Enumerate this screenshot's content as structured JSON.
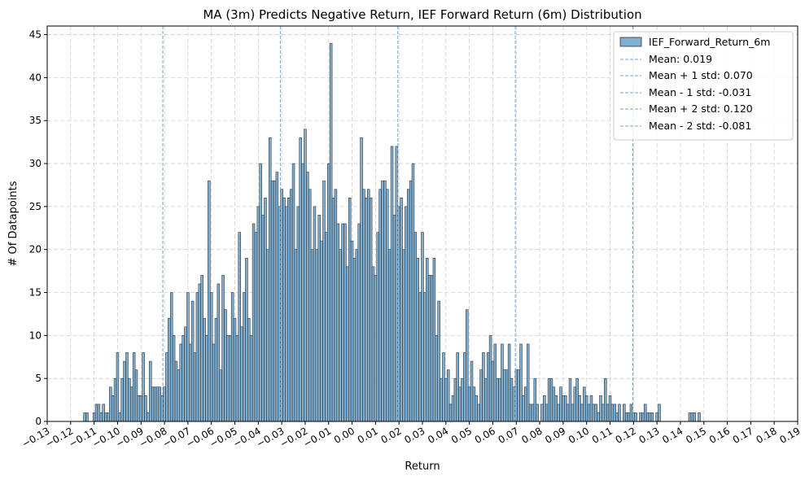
{
  "chart_data": {
    "type": "bar",
    "title": "MA (3m) Predicts Negative Return, IEF Forward Return (6m) Distribution",
    "xlabel": "Return",
    "ylabel": "# Of Datapoints",
    "xlim": [
      -0.13,
      0.19
    ],
    "ylim": [
      0,
      46
    ],
    "grid": true,
    "legend_position": "top-right",
    "x_ticks": [
      -0.13,
      -0.12,
      -0.11,
      -0.1,
      -0.09,
      -0.08,
      -0.07,
      -0.06,
      -0.05,
      -0.04,
      -0.03,
      -0.02,
      -0.01,
      0.0,
      0.01,
      0.02,
      0.03,
      0.04,
      0.05,
      0.06,
      0.07,
      0.08,
      0.09,
      0.1,
      0.11,
      0.12,
      0.13,
      0.14,
      0.15,
      0.16,
      0.17,
      0.18,
      0.19
    ],
    "x_tick_labels": [
      "−0.13",
      "−0.12",
      "−0.11",
      "−0.10",
      "−0.09",
      "−0.08",
      "−0.07",
      "−0.06",
      "−0.05",
      "−0.04",
      "−0.03",
      "−0.02",
      "−0.01",
      "0.00",
      "0.01",
      "0.02",
      "0.03",
      "0.04",
      "0.05",
      "0.06",
      "0.07",
      "0.08",
      "0.09",
      "0.10",
      "0.11",
      "0.12",
      "0.13",
      "0.14",
      "0.15",
      "0.16",
      "0.17",
      "0.18",
      "0.19"
    ],
    "y_ticks": [
      0,
      5,
      10,
      15,
      20,
      25,
      30,
      35,
      40,
      45
    ],
    "y_tick_labels": [
      "0",
      "5",
      "10",
      "15",
      "20",
      "25",
      "30",
      "35",
      "40",
      "45"
    ],
    "series": [
      {
        "name": "IEF_Forward_Return_6m",
        "bin_start": -0.1145,
        "bin_width": 0.001,
        "color": "#7fb0d3",
        "edge_color": "#333333",
        "counts": [
          1,
          1,
          0,
          0,
          1,
          2,
          2,
          1,
          2,
          1,
          1,
          4,
          3,
          5,
          8,
          1,
          5,
          7,
          8,
          5,
          4,
          8,
          6,
          3,
          3,
          8,
          3,
          1,
          7,
          4,
          4,
          4,
          4,
          3,
          4,
          8,
          12,
          15,
          10,
          7,
          6,
          9,
          10,
          11,
          15,
          9,
          14,
          8,
          15,
          16,
          17,
          12,
          10,
          28,
          15,
          9,
          12,
          16,
          6,
          17,
          13,
          10,
          10,
          15,
          12,
          10,
          22,
          11,
          15,
          19,
          12,
          10,
          23,
          22,
          25,
          30,
          24,
          26,
          20,
          33,
          28,
          28,
          29,
          25,
          27,
          26,
          25,
          26,
          27,
          30,
          20,
          25,
          33,
          30,
          34,
          29,
          27,
          20,
          25,
          20,
          24,
          21,
          28,
          22,
          30,
          44,
          26,
          27,
          23,
          20,
          23,
          23,
          18,
          26,
          21,
          19,
          20,
          23,
          33,
          27,
          26,
          27,
          26,
          18,
          17,
          22,
          27,
          28,
          28,
          27,
          20,
          32,
          24,
          32,
          25,
          26,
          20,
          25,
          27,
          28,
          30,
          22,
          19,
          15,
          22,
          15,
          19,
          17,
          17,
          19,
          10,
          14,
          5,
          8,
          5,
          6,
          2,
          3,
          5,
          8,
          4,
          5,
          8,
          13,
          4,
          7,
          4,
          3,
          2,
          6,
          8,
          5,
          8,
          10,
          7,
          9,
          5,
          5,
          9,
          6,
          6,
          9,
          5,
          4,
          6,
          6,
          9,
          3,
          4,
          9,
          2,
          2,
          5,
          2,
          0,
          2,
          3,
          2,
          5,
          5,
          4,
          3,
          2,
          4,
          3,
          3,
          2,
          5,
          2,
          4,
          5,
          3,
          2,
          4,
          3,
          2,
          3,
          2,
          2,
          1,
          3,
          2,
          5,
          2,
          3,
          2,
          2,
          1,
          2,
          0,
          2,
          1,
          1,
          2,
          1,
          1,
          0,
          1,
          1,
          2,
          1,
          1,
          1,
          0,
          1,
          2,
          0,
          0,
          0,
          0,
          0,
          0,
          0,
          0,
          0,
          0,
          0,
          0,
          1,
          1,
          1,
          0,
          1
        ]
      }
    ],
    "reference_lines": [
      {
        "label": "Mean: 0.019",
        "x": 0.0195
      },
      {
        "label": "Mean + 1 std: 0.070",
        "x": 0.0696
      },
      {
        "label": "Mean - 1 std: -0.031",
        "x": -0.0306
      },
      {
        "label": "Mean + 2 std: 0.120",
        "x": 0.1197
      },
      {
        "label": "Mean - 2 std: -0.081",
        "x": -0.0807
      }
    ],
    "reference_line_color": "#7aa6c6"
  }
}
